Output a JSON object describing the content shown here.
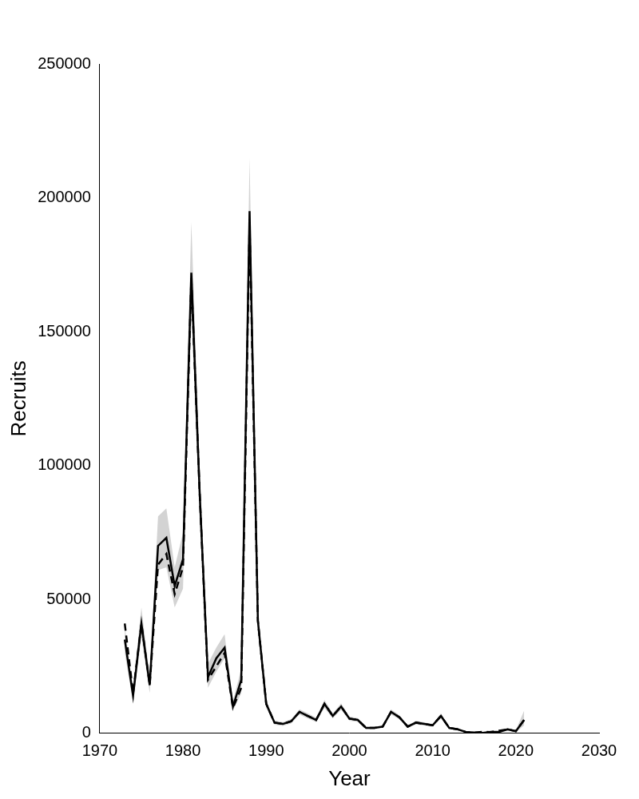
{
  "chart_data": {
    "type": "line",
    "x_label": "Year",
    "y_label": "Recruits",
    "x": [
      1973,
      1974,
      1975,
      1976,
      1977,
      1978,
      1979,
      1980,
      1981,
      1982,
      1983,
      1984,
      1985,
      1986,
      1987,
      1988,
      1989,
      1990,
      1991,
      1992,
      1993,
      1994,
      1995,
      1996,
      1997,
      1998,
      1999,
      2000,
      2001,
      2002,
      2003,
      2004,
      2005,
      2006,
      2007,
      2008,
      2009,
      2010,
      2011,
      2012,
      2013,
      2014,
      2015,
      2016,
      2017,
      2018,
      2019,
      2020,
      2021
    ],
    "series": [
      {
        "color": "#000000",
        "line_style": "solid",
        "values": [
          35000,
          14000,
          41000,
          18000,
          70000,
          73000,
          55000,
          65000,
          172000,
          90000,
          21000,
          28000,
          32000,
          10000,
          20000,
          195000,
          42000,
          11000,
          4000,
          3500,
          4500,
          8000,
          6500,
          5000,
          11000,
          6500,
          10000,
          5500,
          5000,
          2000,
          2000,
          2500,
          8000,
          6000,
          2500,
          4000,
          3500,
          3000,
          6500,
          2000,
          1500,
          500,
          300,
          200,
          500,
          500,
          1500,
          800,
          5000
        ],
        "interval": {
          "color": "#d3d3d3",
          "lower": [
            30000,
            11500,
            36000,
            15000,
            61000,
            62000,
            47000,
            54000,
            158000,
            80000,
            17000,
            23000,
            28000,
            8500,
            15000,
            178000,
            38000,
            9500,
            3200,
            2800,
            3700,
            7000,
            5500,
            4200,
            9500,
            5500,
            8800,
            4700,
            4300,
            1600,
            1600,
            2000,
            7000,
            5200,
            2000,
            3300,
            2900,
            2500,
            5500,
            1600,
            1100,
            300,
            150,
            100,
            250,
            250,
            1000,
            400,
            3000
          ],
          "upper": [
            40000,
            16500,
            47000,
            21000,
            81000,
            84000,
            62000,
            75000,
            191000,
            100000,
            26000,
            32000,
            37000,
            12000,
            24000,
            215000,
            46000,
            12500,
            4800,
            4200,
            5300,
            9000,
            7500,
            5800,
            12500,
            7500,
            11200,
            6300,
            5700,
            2400,
            2400,
            3000,
            9000,
            6800,
            3000,
            4700,
            4100,
            3500,
            7500,
            2400,
            1900,
            700,
            450,
            350,
            800,
            800,
            2000,
            1200,
            8500
          ]
        }
      },
      {
        "color": "#000000",
        "line_style": "dashed",
        "values": [
          41000,
          15000,
          41000,
          18000,
          63000,
          67000,
          52000,
          62000,
          170000,
          90000,
          20000,
          25000,
          30000,
          9500,
          17000,
          190000,
          42000,
          11000,
          4000,
          3500,
          4500,
          8000,
          6500,
          5000,
          11000,
          6500,
          10000,
          5500,
          5000,
          2000,
          2000,
          2500,
          8000,
          6000,
          2500,
          4000,
          3500,
          3000,
          6500,
          2000,
          1500,
          500,
          300,
          600,
          500,
          1000,
          1500,
          800,
          5000
        ]
      }
    ],
    "xlim": [
      1970,
      2030
    ],
    "xticks": [
      1970,
      1980,
      1990,
      2000,
      2010,
      2020,
      2030
    ],
    "ylim": [
      0,
      250000
    ],
    "yticks": [
      0,
      50000,
      100000,
      150000,
      200000,
      250000
    ],
    "grid": false
  }
}
